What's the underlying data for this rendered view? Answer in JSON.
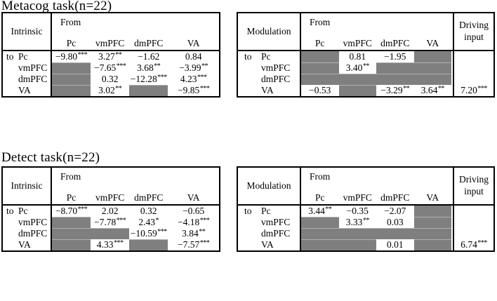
{
  "colors": {
    "gray_cell": "#7f7f7f",
    "border": "#000000",
    "text": "#000000",
    "background": "#ffffff"
  },
  "sections": [
    {
      "title": "Metacog task(n=22)",
      "intrinsic": {
        "corner_label": "Intrinsic",
        "from_label": "From",
        "col_headers": [
          "Pc",
          "vmPFC",
          "dmPFC",
          "VA"
        ],
        "to_prefix": "to",
        "row_headers": [
          "Pc",
          "vmPFC",
          "dmPFC",
          "VA"
        ],
        "rows": [
          [
            "−9.80***",
            "3.27**",
            "−1.62",
            "0.84"
          ],
          [
            null,
            "−7.65***",
            "3.68**",
            "−3.99**"
          ],
          [
            null,
            "0.32",
            "−12.28***",
            "4.23***"
          ],
          [
            null,
            "3.02**",
            null,
            "−9.85***"
          ]
        ]
      },
      "modulation": {
        "corner_label": "Modulation",
        "from_label": "From",
        "col_headers": [
          "Pc",
          "vmPFC",
          "dmPFC",
          "VA"
        ],
        "driving_label": "Driving input",
        "to_prefix": "to",
        "row_headers": [
          "Pc",
          "vmPFC",
          "dmPFC",
          "VA"
        ],
        "rows": [
          [
            null,
            "0.81",
            "−1.95",
            null
          ],
          [
            null,
            "3.40**",
            null,
            null
          ],
          [
            null,
            null,
            null,
            null
          ],
          [
            "−0.53",
            null,
            "−3.29**",
            "3.64**"
          ]
        ],
        "driving": [
          "",
          "",
          "",
          "7.20***"
        ]
      }
    },
    {
      "title": "Detect task(n=22)",
      "intrinsic": {
        "corner_label": "Intrinsic",
        "from_label": "From",
        "col_headers": [
          "Pc",
          "vmPFC",
          "dmPFC",
          "VA"
        ],
        "to_prefix": "to",
        "row_headers": [
          "Pc",
          "vmPFC",
          "dmPFC",
          "VA"
        ],
        "rows": [
          [
            "−8.70***",
            "2.02",
            "0.32",
            "−0.65"
          ],
          [
            null,
            "−7.78***",
            "2.43*",
            "−4.18***"
          ],
          [
            null,
            null,
            "−10.59***",
            "3.84**"
          ],
          [
            null,
            "4.33***",
            null,
            "−7.57***"
          ]
        ]
      },
      "modulation": {
        "corner_label": "Modulation",
        "from_label": "From",
        "col_headers": [
          "Pc",
          "vmPFC",
          "dmPFC",
          "VA"
        ],
        "driving_label": "Driving input",
        "to_prefix": "to",
        "row_headers": [
          "Pc",
          "vmPFC",
          "dmPFC",
          "VA"
        ],
        "rows": [
          [
            "3.44**",
            "−0.35",
            "−2.07",
            null
          ],
          [
            null,
            "3.33**",
            "0.03",
            null
          ],
          [
            null,
            null,
            null,
            null
          ],
          [
            null,
            null,
            "0.01",
            null
          ]
        ],
        "driving": [
          "",
          "",
          "",
          "6.74***"
        ]
      }
    }
  ]
}
